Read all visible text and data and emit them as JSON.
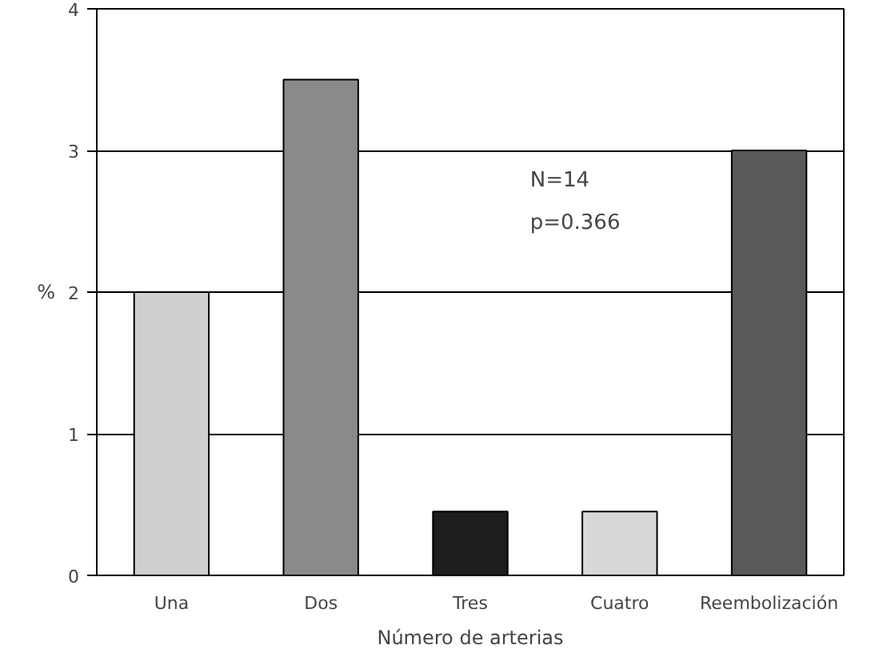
{
  "chart_data": {
    "type": "bar",
    "xlabel": "Número de arterias",
    "ylabel": "%",
    "categories": [
      "Una",
      "Dos",
      "Tres",
      "Cuatro",
      "Reembolización"
    ],
    "values": [
      2.0,
      3.5,
      0.45,
      0.45,
      3.0
    ],
    "colors": [
      "#cfcfcf",
      "#8a8a8a",
      "#1e1e1e",
      "#d8d8d8",
      "#5a5a5a"
    ],
    "ylim": [
      0,
      4
    ],
    "yticks": [
      0,
      1,
      2,
      3,
      4
    ],
    "grid": "y",
    "annotations": [
      "N=14",
      "p=0.366"
    ]
  }
}
